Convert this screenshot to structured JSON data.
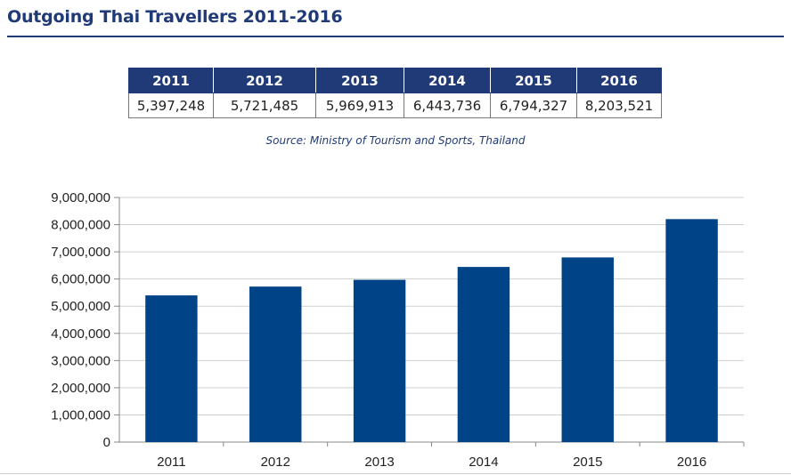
{
  "page": {
    "title": "Outgoing Thai Travellers 2011-2016",
    "source": "Source: Ministry of Tourism and Sports, Thailand"
  },
  "table": {
    "headers": [
      "2011",
      "2012",
      "2013",
      "2014",
      "2015",
      "2016"
    ],
    "values": [
      "5,397,248",
      "5,721,485",
      "5,969,913",
      "6,443,736",
      "6,794,327",
      "8,203,521"
    ]
  },
  "colors": {
    "accent": "#1f3a76",
    "bar": "#004386"
  },
  "chart_data": {
    "type": "bar",
    "categories": [
      "2011",
      "2012",
      "2013",
      "2014",
      "2015",
      "2016"
    ],
    "values": [
      5397248,
      5721485,
      5969913,
      6443736,
      6794327,
      8203521
    ],
    "title": "",
    "xlabel": "",
    "ylabel": "",
    "ylim": [
      0,
      9000000
    ],
    "yticks": [
      "0",
      "1,000,000",
      "2,000,000",
      "3,000,000",
      "4,000,000",
      "5,000,000",
      "6,000,000",
      "7,000,000",
      "8,000,000",
      "9,000,000"
    ],
    "grid": true,
    "legend": "none"
  }
}
